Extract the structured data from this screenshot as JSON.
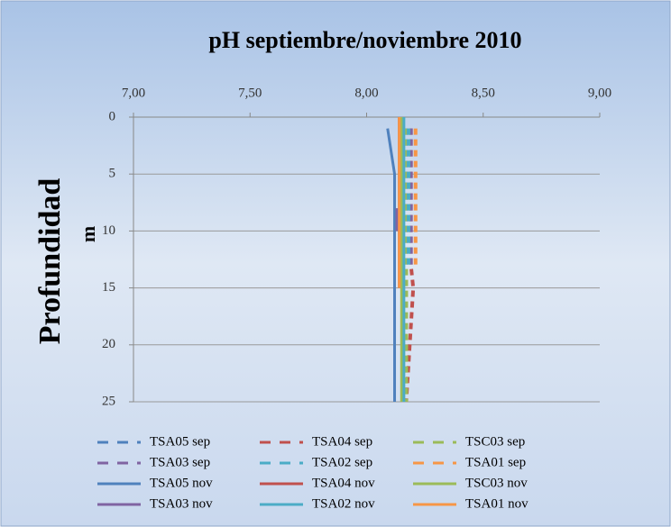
{
  "chart_data": {
    "type": "line",
    "title": "pH septiembre/noviembre 2010",
    "y_label": "Profundidad",
    "y_unit": "m",
    "xlim": [
      7,
      9
    ],
    "xticks": [
      {
        "value": 7,
        "label": "7,00"
      },
      {
        "value": 7.5,
        "label": "7,50"
      },
      {
        "value": 8,
        "label": "8,00"
      },
      {
        "value": 8.5,
        "label": "8,50"
      },
      {
        "value": 9,
        "label": "9,00"
      }
    ],
    "ylim": [
      0,
      25
    ],
    "yticks": [
      0,
      5,
      10,
      15,
      20,
      25
    ],
    "y_inverted": true,
    "grid": true,
    "series": [
      {
        "name": "TSA05 sep",
        "color": "#4f81bd",
        "dashed": true,
        "x": [
          8.17,
          8.17,
          8.17,
          8.17,
          8.17,
          8.17,
          8.17
        ],
        "y": [
          1,
          3,
          5,
          7,
          9,
          11,
          13
        ]
      },
      {
        "name": "TSA04 sep",
        "color": "#c0504d",
        "dashed": true,
        "x": [
          8.19,
          8.19,
          8.19,
          8.19,
          8.19,
          8.19,
          8.19,
          8.2,
          8.17
        ],
        "y": [
          1,
          3,
          5,
          7,
          9,
          11,
          13,
          15,
          25
        ]
      },
      {
        "name": "TSC03 sep",
        "color": "#9bbb59",
        "dashed": true,
        "x": [
          8.17,
          8.17,
          8.17,
          8.17,
          8.17,
          8.17,
          8.17,
          8.17,
          8.17
        ],
        "y": [
          1,
          3,
          5,
          7,
          9,
          11,
          13,
          15,
          25
        ]
      },
      {
        "name": "TSA03 sep",
        "color": "#8064a2",
        "dashed": true,
        "x": [
          8.19,
          8.19,
          8.19,
          8.19,
          8.19,
          8.19,
          8.19
        ],
        "y": [
          1,
          3,
          5,
          7,
          9,
          11,
          13
        ]
      },
      {
        "name": "TSA02 sep",
        "color": "#4bacc6",
        "dashed": true,
        "x": [
          8.18,
          8.18,
          8.18,
          8.18,
          8.18,
          8.18,
          8.18
        ],
        "y": [
          1,
          3,
          5,
          7,
          9,
          11,
          13
        ]
      },
      {
        "name": "TSA01 sep",
        "color": "#f79646",
        "dashed": true,
        "x": [
          8.21,
          8.21,
          8.21,
          8.21,
          8.21,
          8.21,
          8.21
        ],
        "y": [
          1,
          3,
          5,
          7,
          9,
          11,
          13
        ]
      },
      {
        "name": "TSA05 nov",
        "color": "#4f81bd",
        "dashed": false,
        "x": [
          8.09,
          8.12,
          8.12
        ],
        "y": [
          1,
          5,
          25
        ]
      },
      {
        "name": "TSA04 nov",
        "color": "#c0504d",
        "dashed": false,
        "x": [
          8.14,
          8.14
        ],
        "y": [
          0,
          15
        ]
      },
      {
        "name": "TSC03 nov",
        "color": "#9bbb59",
        "dashed": false,
        "x": [
          8.15,
          8.15
        ],
        "y": [
          0,
          25
        ]
      },
      {
        "name": "TSA03 nov",
        "color": "#8064a2",
        "dashed": false,
        "x": [
          8.13,
          8.13
        ],
        "y": [
          8,
          10
        ]
      },
      {
        "name": "TSA02 nov",
        "color": "#4bacc6",
        "dashed": false,
        "x": [
          8.16,
          8.16
        ],
        "y": [
          0,
          25
        ]
      },
      {
        "name": "TSA01 nov",
        "color": "#f79646",
        "dashed": false,
        "x": [
          8.14,
          8.14
        ],
        "y": [
          0,
          15
        ]
      }
    ]
  }
}
